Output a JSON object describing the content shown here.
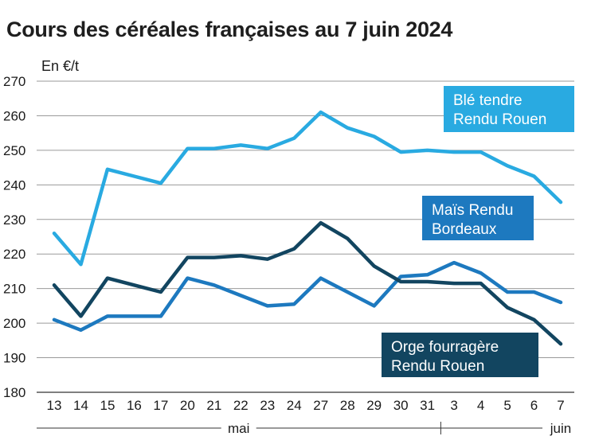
{
  "title": "Cours des céréales françaises au 7 juin 2024",
  "chart_data": {
    "type": "line",
    "title": "Cours des céréales françaises au 7 juin 2024",
    "unit_label": "En €/t",
    "ylim": [
      180,
      270
    ],
    "yticks": [
      180,
      190,
      200,
      210,
      220,
      230,
      240,
      250,
      260,
      270
    ],
    "grid": "horizontal",
    "categories": [
      "13",
      "14",
      "15",
      "16",
      "17",
      "20",
      "21",
      "22",
      "23",
      "24",
      "27",
      "28",
      "29",
      "30",
      "31",
      "3",
      "4",
      "5",
      "6",
      "7"
    ],
    "month_labels": [
      {
        "label": "mai",
        "from": 0,
        "to": 14
      },
      {
        "label": "juin",
        "from": 15,
        "to": 19
      }
    ],
    "series": [
      {
        "name": "Blé tendre Rendu Rouen",
        "label_lines": [
          "Blé tendre",
          "Rendu Rouen"
        ],
        "color": "#29aae1",
        "values": [
          226,
          217,
          244.5,
          242.5,
          240.5,
          250.5,
          250.5,
          251.5,
          250.5,
          253.5,
          261,
          256.5,
          254,
          249.5,
          250,
          249.5,
          249.5,
          245.5,
          242.5,
          235
        ]
      },
      {
        "name": "Maïs Rendu Bordeaux",
        "label_lines": [
          "Maïs Rendu",
          "Bordeaux"
        ],
        "color": "#1d79bf",
        "values": [
          201,
          198,
          202,
          202,
          202,
          213,
          211,
          208,
          205,
          205.5,
          213,
          209,
          205,
          213.5,
          214,
          217.5,
          214.5,
          209,
          209,
          206
        ]
      },
      {
        "name": "Orge fourragère Rendu Rouen",
        "label_lines": [
          "Orge fourragère",
          "Rendu Rouen"
        ],
        "color": "#124560",
        "values": [
          211,
          202,
          213,
          211,
          209,
          219,
          219,
          219.5,
          218.5,
          221.5,
          229,
          224.5,
          216.5,
          212,
          212,
          211.5,
          211.5,
          204.5,
          201,
          194
        ]
      }
    ]
  }
}
